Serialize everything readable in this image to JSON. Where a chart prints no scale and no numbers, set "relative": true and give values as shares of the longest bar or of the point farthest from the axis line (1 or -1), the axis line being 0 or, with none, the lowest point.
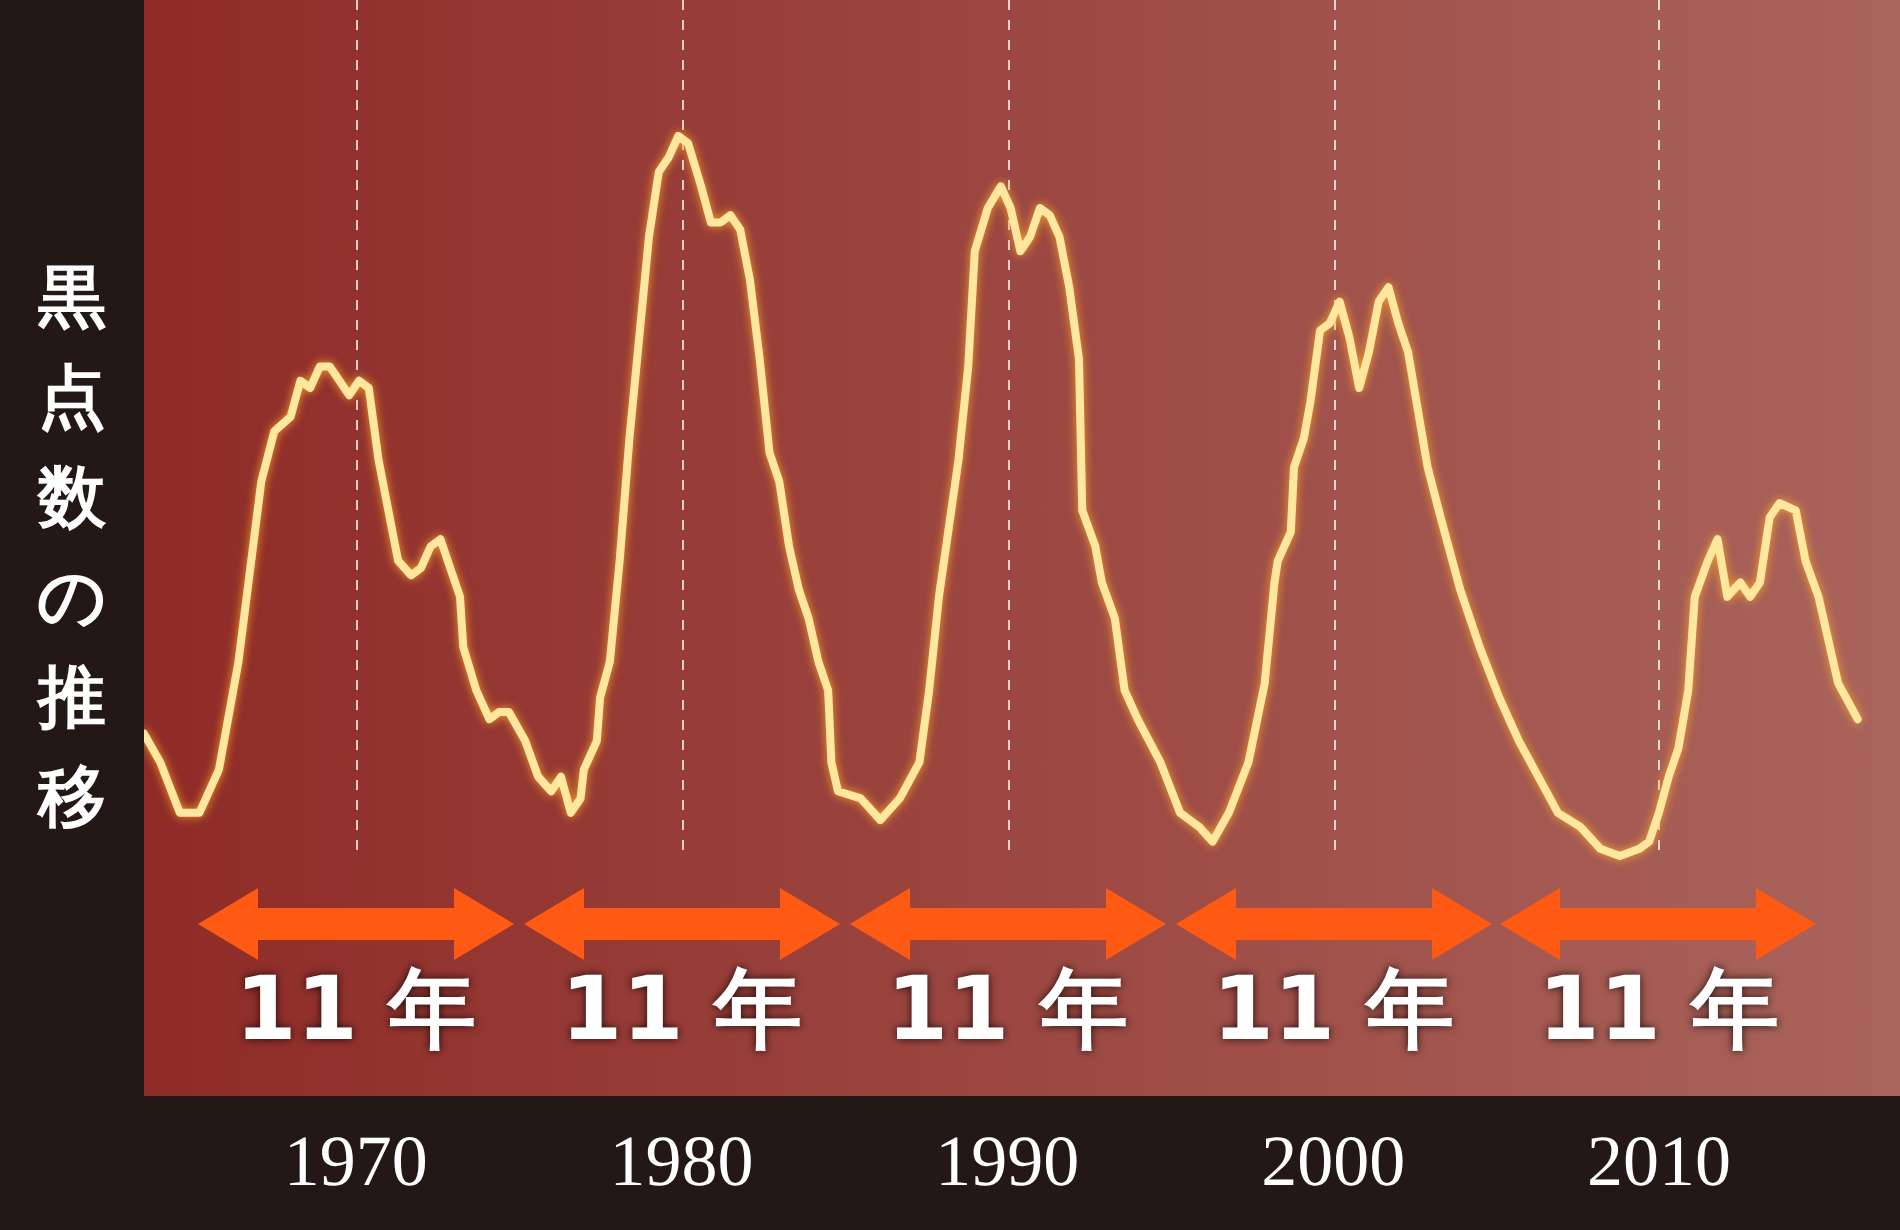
{
  "chart_data": {
    "type": "line",
    "relative": true,
    "ylabel": "黒点数の推移",
    "xlim": [
      1963.5,
      2017.4
    ],
    "xticks": [
      1970,
      1980,
      1990,
      2000,
      2010
    ],
    "grid": "x",
    "marker": "none",
    "line_style": "solid",
    "annotations": [
      "11 年",
      "11 年",
      "11 年",
      "11 年",
      "11 年"
    ],
    "series": [
      {
        "color": "#ffe7a0",
        "x": [
          1963.5,
          1964.0,
          1964.6,
          1965.2,
          1965.8,
          1966.4,
          1967.1,
          1967.5,
          1968.0,
          1968.3,
          1968.6,
          1968.9,
          1969.2,
          1969.5,
          1969.8,
          1970.1,
          1970.4,
          1970.7,
          1971.0,
          1971.3,
          1971.7,
          1972.0,
          1972.3,
          1972.6,
          1972.9,
          1973.2,
          1973.3,
          1973.7,
          1974.1,
          1974.4,
          1974.7,
          1975.2,
          1975.6,
          1976.0,
          1976.3,
          1976.6,
          1976.9,
          1977.0,
          1977.4,
          1977.5,
          1977.8,
          1978.1,
          1978.4,
          1978.7,
          1979.0,
          1979.3,
          1979.6,
          1979.9,
          1980.2,
          1980.6,
          1980.9,
          1981.2,
          1981.5,
          1981.8,
          1982.1,
          1982.4,
          1982.7,
          1983.0,
          1983.3,
          1983.6,
          1983.9,
          1984.2,
          1984.5,
          1984.6,
          1984.8,
          1985.5,
          1986.1,
          1986.7,
          1987.3,
          1987.6,
          1987.9,
          1988.5,
          1988.8,
          1989.0,
          1989.4,
          1989.8,
          1990.1,
          1990.4,
          1990.7,
          1991.0,
          1991.3,
          1991.6,
          1991.9,
          1992.2,
          1992.3,
          1992.7,
          1992.9,
          1993.3,
          1993.6,
          1994.0,
          1994.7,
          1995.3,
          1995.9,
          1996.3,
          1996.8,
          1997.4,
          1997.9,
          1998.2,
          1998.3,
          1998.7,
          1998.8,
          1999.1,
          1999.3,
          1999.6,
          1999.9,
          2000.2,
          2000.5,
          2000.8,
          2001.1,
          2001.4,
          2001.7,
          2002.0,
          2002.3,
          2002.6,
          2002.9,
          2003.3,
          2003.9,
          2004.5,
          2005.1,
          2005.7,
          2006.3,
          2006.9,
          2007.6,
          2008.2,
          2008.8,
          2009.4,
          2009.7,
          2010.0,
          2010.3,
          2010.6,
          2010.9,
          2011.1,
          2011.5,
          2011.8,
          2012.1,
          2012.5,
          2012.8,
          2013.1,
          2013.4,
          2013.7,
          2014.2,
          2014.5,
          2014.9,
          2015.5,
          2016.1
        ],
        "values": [
          0.17,
          0.13,
          0.06,
          0.06,
          0.12,
          0.27,
          0.52,
          0.59,
          0.61,
          0.66,
          0.65,
          0.68,
          0.68,
          0.66,
          0.64,
          0.66,
          0.65,
          0.55,
          0.48,
          0.41,
          0.39,
          0.4,
          0.43,
          0.44,
          0.4,
          0.36,
          0.29,
          0.23,
          0.19,
          0.2,
          0.2,
          0.16,
          0.11,
          0.09,
          0.11,
          0.06,
          0.08,
          0.12,
          0.16,
          0.22,
          0.27,
          0.41,
          0.58,
          0.72,
          0.86,
          0.95,
          0.97,
          1,
          0.99,
          0.93,
          0.88,
          0.88,
          0.89,
          0.87,
          0.8,
          0.69,
          0.56,
          0.52,
          0.43,
          0.37,
          0.33,
          0.27,
          0.23,
          0.13,
          0.09,
          0.08,
          0.05,
          0.08,
          0.13,
          0.23,
          0.36,
          0.55,
          0.68,
          0.84,
          0.9,
          0.93,
          0.9,
          0.84,
          0.86,
          0.9,
          0.89,
          0.86,
          0.79,
          0.69,
          0.48,
          0.43,
          0.38,
          0.33,
          0.23,
          0.19,
          0.13,
          0.06,
          0.04,
          0.02,
          0.06,
          0.13,
          0.24,
          0.38,
          0.41,
          0.45,
          0.54,
          0.58,
          0.63,
          0.73,
          0.74,
          0.77,
          0.72,
          0.65,
          0.7,
          0.77,
          0.79,
          0.74,
          0.7,
          0.62,
          0.54,
          0.47,
          0.37,
          0.29,
          0.22,
          0.16,
          0.11,
          0.06,
          0.04,
          0.01,
          0,
          0.01,
          0.02,
          0.06,
          0.11,
          0.15,
          0.23,
          0.36,
          0.41,
          0.44,
          0.36,
          0.38,
          0.36,
          0.38,
          0.47,
          0.49,
          0.48,
          0.41,
          0.36,
          0.24,
          0.19
        ]
      }
    ]
  }
}
